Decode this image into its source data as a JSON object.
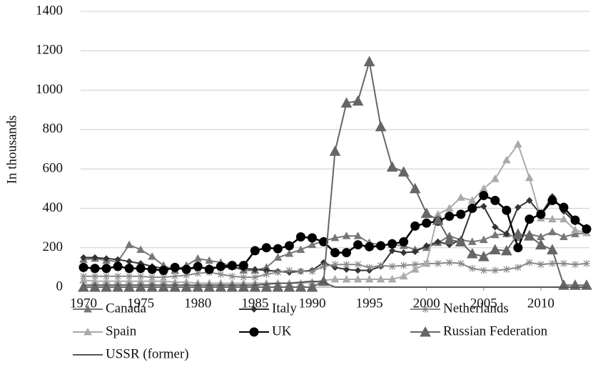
{
  "chart_data": {
    "type": "line",
    "y_label": "In thousands",
    "x": [
      1970,
      1971,
      1972,
      1973,
      1974,
      1975,
      1976,
      1977,
      1978,
      1979,
      1980,
      1981,
      1982,
      1983,
      1984,
      1985,
      1986,
      1987,
      1988,
      1989,
      1990,
      1991,
      1992,
      1993,
      1994,
      1995,
      1996,
      1997,
      1998,
      1999,
      2000,
      2001,
      2002,
      2003,
      2004,
      2005,
      2006,
      2007,
      2008,
      2009,
      2010,
      2011,
      2012,
      2013,
      2014
    ],
    "xlim": [
      1970,
      2014
    ],
    "xticks": [
      1970,
      1975,
      1980,
      1985,
      1990,
      1995,
      2000,
      2005,
      2010
    ],
    "ylim": [
      0,
      1400
    ],
    "yticks": [
      0,
      200,
      400,
      600,
      800,
      1000,
      1200,
      1400
    ],
    "grid": true,
    "legend": "bottom",
    "series": [
      {
        "name": "Canada",
        "color": "#777777",
        "marker": "triangle",
        "values": [
          140,
          145,
          135,
          130,
          215,
          190,
          155,
          110,
          85,
          110,
          145,
          135,
          125,
          105,
          85,
          85,
          100,
          150,
          170,
          190,
          215,
          235,
          250,
          260,
          260,
          225,
          215,
          215,
          210,
          190,
          200,
          225,
          260,
          240,
          230,
          240,
          265,
          270,
          250,
          270,
          255,
          280,
          255,
          270,
          275
        ]
      },
      {
        "name": "Italy",
        "color": "#333333",
        "marker": "diamond",
        "values": [
          150,
          150,
          145,
          140,
          130,
          120,
          105,
          95,
          90,
          95,
          95,
          100,
          100,
          100,
          95,
          90,
          85,
          80,
          75,
          80,
          85,
          125,
          100,
          90,
          85,
          85,
          105,
          185,
          175,
          180,
          210,
          230,
          215,
          240,
          400,
          410,
          305,
          270,
          405,
          440,
          370,
          460,
          385,
          330,
          305
        ]
      },
      {
        "name": "Netherlands",
        "color": "#888888",
        "marker": "asterisk",
        "values": [
          55,
          55,
          55,
          55,
          55,
          55,
          50,
          50,
          55,
          60,
          70,
          75,
          65,
          55,
          50,
          50,
          65,
          75,
          85,
          80,
          80,
          105,
          115,
          115,
          115,
          100,
          110,
          105,
          110,
          115,
          120,
          120,
          125,
          120,
          95,
          85,
          85,
          90,
          100,
          125,
          115,
          120,
          120,
          115,
          120
        ]
      },
      {
        "name": "Spain",
        "color": "#aaaaaa",
        "marker": "triangle",
        "values": [
          35,
          30,
          30,
          30,
          30,
          30,
          30,
          30,
          25,
          25,
          20,
          20,
          20,
          20,
          20,
          20,
          20,
          20,
          20,
          20,
          25,
          35,
          40,
          40,
          40,
          40,
          40,
          40,
          55,
          90,
          120,
          370,
          400,
          455,
          440,
          500,
          550,
          645,
          725,
          555,
          350,
          345,
          345,
          290,
          275
        ]
      },
      {
        "name": "UK",
        "color": "#000000",
        "marker": "circle",
        "values": [
          100,
          95,
          95,
          105,
          95,
          95,
          90,
          85,
          100,
          90,
          105,
          90,
          105,
          110,
          110,
          185,
          200,
          195,
          210,
          255,
          250,
          230,
          175,
          175,
          215,
          205,
          210,
          220,
          230,
          310,
          325,
          335,
          360,
          370,
          400,
          465,
          440,
          390,
          200,
          345,
          370,
          440,
          405,
          340,
          295
        ]
      },
      {
        "name": "Russian Federation",
        "color": "#666666",
        "marker": "bigtriangle",
        "values": [
          0,
          0,
          0,
          0,
          0,
          0,
          0,
          0,
          0,
          0,
          0,
          0,
          0,
          0,
          0,
          0,
          0,
          0,
          0,
          0,
          0,
          30,
          690,
          935,
          945,
          1145,
          815,
          610,
          585,
          500,
          375,
          340,
          240,
          230,
          170,
          155,
          190,
          185,
          270,
          260,
          215,
          190,
          10,
          10,
          10
        ]
      },
      {
        "name": "USSR (former)",
        "color": "#555555",
        "marker": "none",
        "values": [
          10,
          10,
          10,
          10,
          10,
          10,
          10,
          10,
          10,
          10,
          10,
          10,
          10,
          10,
          10,
          10,
          15,
          20,
          20,
          25,
          30,
          25,
          0,
          0,
          0,
          0,
          0,
          0,
          0,
          0,
          0,
          0,
          0,
          0,
          0,
          0,
          0,
          0,
          0,
          0,
          0,
          0,
          0,
          0,
          0
        ]
      }
    ]
  }
}
